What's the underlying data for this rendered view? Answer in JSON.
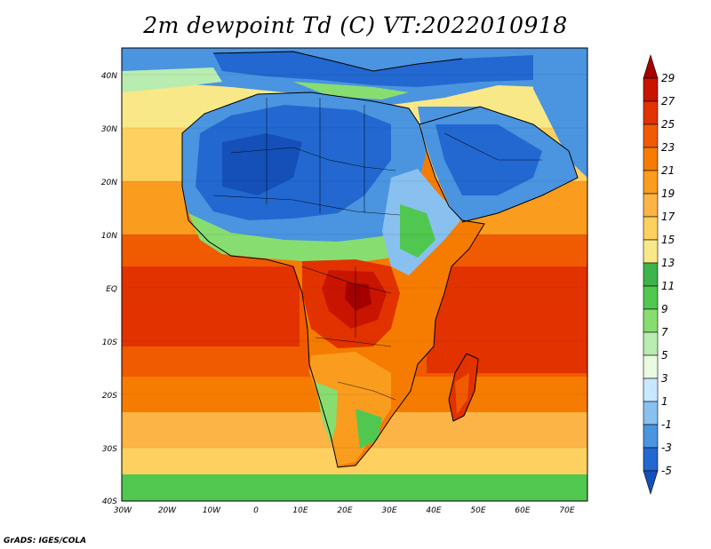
{
  "title": "2m dewpoint Td (C) VT:2022010918",
  "credit": "GrADS: IGES/COLA",
  "map": {
    "lat_labels": [
      "40N",
      "30N",
      "20N",
      "10N",
      "EQ",
      "10S",
      "20S",
      "30S",
      "40S"
    ],
    "lon_labels": [
      "30W",
      "20W",
      "10W",
      "0",
      "10E",
      "20E",
      "30E",
      "40E",
      "50E",
      "60E",
      "70E"
    ],
    "lon_range": [
      -30,
      75
    ],
    "lat_range": [
      -40,
      45
    ]
  },
  "colorbar": {
    "labels": [
      "29",
      "27",
      "25",
      "23",
      "21",
      "19",
      "17",
      "15",
      "13",
      "11",
      "9",
      "7",
      "5",
      "3",
      "1",
      "-1",
      "-3",
      "-5"
    ],
    "colors": [
      "#a50000",
      "#c81400",
      "#e23200",
      "#f05a00",
      "#f57c00",
      "#fa9c1e",
      "#fbb445",
      "#fdd060",
      "#f8e888",
      "#3cb44b",
      "#50c850",
      "#88dd70",
      "#b8ecb0",
      "#e8fae0",
      "#c8e8ff",
      "#88c0f0",
      "#4a94e0",
      "#2268d0",
      "#1450b8"
    ]
  }
}
